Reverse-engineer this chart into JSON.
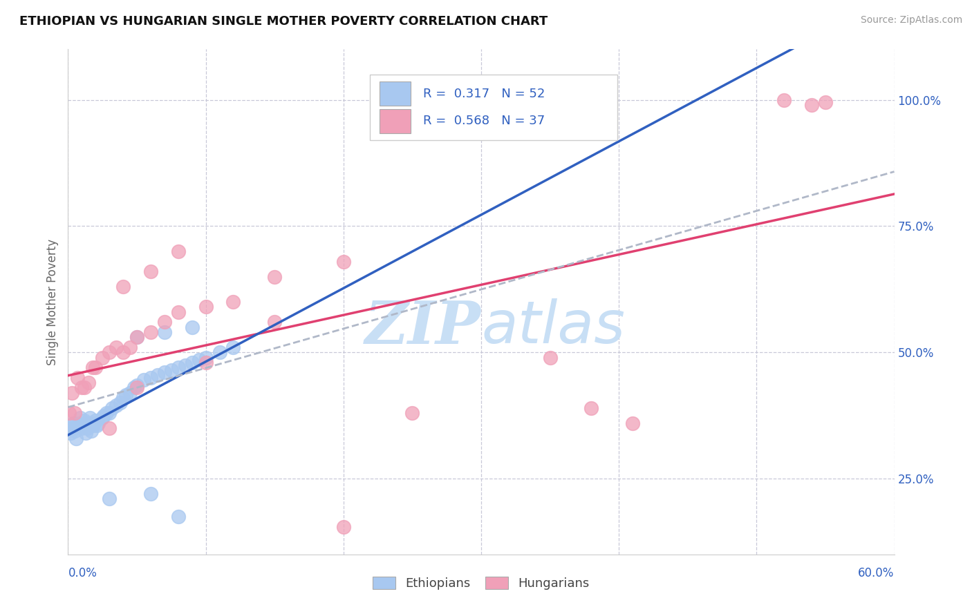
{
  "title": "ETHIOPIAN VS HUNGARIAN SINGLE MOTHER POVERTY CORRELATION CHART",
  "source": "Source: ZipAtlas.com",
  "ylabel": "Single Mother Poverty",
  "yticks": [
    0.25,
    0.5,
    0.75,
    1.0
  ],
  "ytick_labels": [
    "25.0%",
    "50.0%",
    "75.0%",
    "100.0%"
  ],
  "xlim": [
    0.0,
    0.6
  ],
  "ylim": [
    0.1,
    1.1
  ],
  "r_eth": "0.317",
  "n_eth": "52",
  "r_hun": "0.568",
  "n_hun": "37",
  "dot_color_ethiopian": "#a8c8f0",
  "dot_color_hungarian": "#f0a0b8",
  "line_color_ethiopian": "#3060c0",
  "line_color_hungarian": "#e04070",
  "line_color_overall": "#b0b8c8",
  "legend_text_color": "#3060c0",
  "watermark_color": "#c8dff5",
  "background_color": "#ffffff",
  "grid_color": "#c8c8d8",
  "eth_x": [
    0.001,
    0.002,
    0.003,
    0.004,
    0.005,
    0.006,
    0.007,
    0.008,
    0.009,
    0.01,
    0.011,
    0.012,
    0.013,
    0.014,
    0.015,
    0.016,
    0.017,
    0.018,
    0.019,
    0.02,
    0.021,
    0.022,
    0.025,
    0.026,
    0.028,
    0.03,
    0.032,
    0.035,
    0.038,
    0.04,
    0.042,
    0.045,
    0.048,
    0.05,
    0.055,
    0.06,
    0.065,
    0.07,
    0.075,
    0.08,
    0.085,
    0.09,
    0.095,
    0.1,
    0.11,
    0.12,
    0.05,
    0.07,
    0.09,
    0.03,
    0.06,
    0.08
  ],
  "eth_y": [
    0.355,
    0.34,
    0.35,
    0.36,
    0.345,
    0.33,
    0.355,
    0.36,
    0.37,
    0.35,
    0.355,
    0.365,
    0.34,
    0.35,
    0.36,
    0.37,
    0.345,
    0.355,
    0.36,
    0.365,
    0.355,
    0.36,
    0.37,
    0.375,
    0.38,
    0.38,
    0.39,
    0.395,
    0.4,
    0.41,
    0.415,
    0.42,
    0.43,
    0.435,
    0.445,
    0.45,
    0.455,
    0.46,
    0.465,
    0.47,
    0.475,
    0.48,
    0.485,
    0.49,
    0.5,
    0.51,
    0.53,
    0.54,
    0.55,
    0.21,
    0.22,
    0.175
  ],
  "hun_x": [
    0.001,
    0.003,
    0.005,
    0.007,
    0.01,
    0.012,
    0.015,
    0.018,
    0.02,
    0.025,
    0.03,
    0.035,
    0.04,
    0.045,
    0.05,
    0.06,
    0.07,
    0.08,
    0.1,
    0.12,
    0.15,
    0.2,
    0.04,
    0.06,
    0.08,
    0.03,
    0.05,
    0.1,
    0.15,
    0.35,
    0.52,
    0.54,
    0.55,
    0.38,
    0.41,
    0.2,
    0.25
  ],
  "hun_y": [
    0.38,
    0.42,
    0.38,
    0.45,
    0.43,
    0.43,
    0.44,
    0.47,
    0.47,
    0.49,
    0.5,
    0.51,
    0.5,
    0.51,
    0.53,
    0.54,
    0.56,
    0.58,
    0.59,
    0.6,
    0.65,
    0.68,
    0.63,
    0.66,
    0.7,
    0.35,
    0.43,
    0.48,
    0.56,
    0.49,
    1.0,
    0.99,
    0.995,
    0.39,
    0.36,
    0.155,
    0.38
  ]
}
